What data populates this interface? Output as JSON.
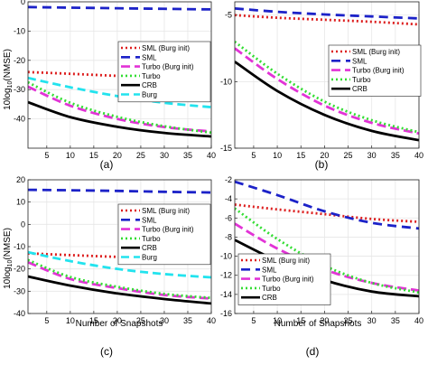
{
  "figure": {
    "ylabel": "10log10(NMSE)",
    "xlabel": "Number of Snapshots",
    "series_styles": {
      "SML (Burg init)": {
        "color": "#dd1f1f",
        "dash": "2,3"
      },
      "SML": {
        "color": "#1c22c8",
        "dash": "10,6"
      },
      "Turbo (Burg init)": {
        "color": "#e233d6",
        "dash": "10,5"
      },
      "Turbo": {
        "color": "#33dd33",
        "dash": "2,3"
      },
      "CRB": {
        "color": "#000000",
        "dash": ""
      },
      "Burg": {
        "color": "#22e3ee",
        "dash": "9,5"
      }
    }
  },
  "chart_data": [
    {
      "type": "line",
      "panel_label": "(a)",
      "x": [
        1,
        40
      ],
      "xticks": [
        5,
        10,
        15,
        20,
        25,
        30,
        35,
        40
      ],
      "yticks": [
        -40,
        -30,
        -20,
        -10,
        0
      ],
      "ylim": [
        -50,
        0
      ],
      "grid": true,
      "legend_position": "top-right",
      "series": [
        {
          "name": "SML (Burg init)",
          "values": [
            [
              1,
              -24
            ],
            [
              10,
              -24.6
            ],
            [
              20,
              -25.3
            ],
            [
              30,
              -25.9
            ],
            [
              40,
              -26.4
            ]
          ]
        },
        {
          "name": "SML",
          "values": [
            [
              1,
              -1.8
            ],
            [
              10,
              -2
            ],
            [
              20,
              -2.2
            ],
            [
              30,
              -2.4
            ],
            [
              40,
              -2.6
            ]
          ]
        },
        {
          "name": "Turbo (Burg init)",
          "values": [
            [
              1,
              -29
            ],
            [
              10,
              -35.5
            ],
            [
              20,
              -40
            ],
            [
              30,
              -42.8
            ],
            [
              40,
              -44.3
            ]
          ]
        },
        {
          "name": "Turbo",
          "values": [
            [
              1,
              -27.5
            ],
            [
              10,
              -34.5
            ],
            [
              20,
              -39.3
            ],
            [
              30,
              -42.5
            ],
            [
              40,
              -44.7
            ]
          ]
        },
        {
          "name": "CRB",
          "values": [
            [
              1,
              -34.3
            ],
            [
              10,
              -39.4
            ],
            [
              20,
              -42.7
            ],
            [
              30,
              -44.8
            ],
            [
              40,
              -46
            ]
          ]
        },
        {
          "name": "Burg",
          "values": [
            [
              1,
              -26
            ],
            [
              10,
              -29.2
            ],
            [
              20,
              -32.2
            ],
            [
              30,
              -34.5
            ],
            [
              40,
              -36
            ]
          ]
        }
      ]
    },
    {
      "type": "line",
      "panel_label": "(b)",
      "x": [
        1,
        40
      ],
      "xticks": [
        5,
        10,
        15,
        20,
        25,
        30,
        35,
        40
      ],
      "yticks": [
        -15,
        -10,
        -5
      ],
      "ylim": [
        -15,
        -4
      ],
      "grid": true,
      "legend_position": "top-right",
      "series": [
        {
          "name": "SML (Burg init)",
          "values": [
            [
              1,
              -5
            ],
            [
              10,
              -5.2
            ],
            [
              20,
              -5.35
            ],
            [
              30,
              -5.5
            ],
            [
              40,
              -5.7
            ]
          ]
        },
        {
          "name": "SML",
          "values": [
            [
              1,
              -4.5
            ],
            [
              10,
              -4.75
            ],
            [
              20,
              -4.95
            ],
            [
              30,
              -5.1
            ],
            [
              40,
              -5.25
            ]
          ]
        },
        {
          "name": "Turbo (Burg init)",
          "values": [
            [
              1,
              -7.5
            ],
            [
              10,
              -9.8
            ],
            [
              20,
              -11.8
            ],
            [
              30,
              -13.1
            ],
            [
              40,
              -13.9
            ]
          ]
        },
        {
          "name": "Turbo",
          "values": [
            [
              1,
              -7
            ],
            [
              10,
              -9.4
            ],
            [
              20,
              -11.5
            ],
            [
              30,
              -12.9
            ],
            [
              40,
              -13.8
            ]
          ]
        },
        {
          "name": "CRB",
          "values": [
            [
              1,
              -8.5
            ],
            [
              10,
              -10.7
            ],
            [
              20,
              -12.5
            ],
            [
              30,
              -13.7
            ],
            [
              40,
              -14.4
            ]
          ]
        }
      ]
    },
    {
      "type": "line",
      "panel_label": "(c)",
      "x": [
        1,
        40
      ],
      "xticks": [
        5,
        10,
        15,
        20,
        25,
        30,
        35,
        40
      ],
      "yticks": [
        -40,
        -30,
        -20,
        -10,
        0,
        10,
        20
      ],
      "ylim": [
        -40,
        20
      ],
      "grid": true,
      "legend_position": "top-right",
      "series": [
        {
          "name": "SML (Burg init)",
          "values": [
            [
              1,
              -13
            ],
            [
              10,
              -13.8
            ],
            [
              20,
              -14.6
            ],
            [
              30,
              -15.3
            ],
            [
              40,
              -15.7
            ]
          ]
        },
        {
          "name": "SML",
          "values": [
            [
              1,
              15.5
            ],
            [
              10,
              15.3
            ],
            [
              20,
              15
            ],
            [
              30,
              14.6
            ],
            [
              40,
              14.3
            ]
          ]
        },
        {
          "name": "Turbo (Burg init)",
          "values": [
            [
              1,
              -17
            ],
            [
              10,
              -24.5
            ],
            [
              20,
              -28.6
            ],
            [
              30,
              -31.7
            ],
            [
              40,
              -33.3
            ]
          ]
        },
        {
          "name": "Turbo",
          "values": [
            [
              1,
              -16
            ],
            [
              10,
              -23.6
            ],
            [
              20,
              -28
            ],
            [
              30,
              -31.2
            ],
            [
              40,
              -33
            ]
          ]
        },
        {
          "name": "CRB",
          "values": [
            [
              1,
              -23.4
            ],
            [
              10,
              -27.5
            ],
            [
              20,
              -31
            ],
            [
              30,
              -33.5
            ],
            [
              40,
              -35.5
            ]
          ]
        },
        {
          "name": "Burg",
          "values": [
            [
              1,
              -12.5
            ],
            [
              10,
              -16.5
            ],
            [
              20,
              -20
            ],
            [
              30,
              -22.3
            ],
            [
              40,
              -23.8
            ]
          ]
        }
      ]
    },
    {
      "type": "line",
      "panel_label": "(d)",
      "x": [
        1,
        40
      ],
      "xticks": [
        5,
        10,
        15,
        20,
        25,
        30,
        35,
        40
      ],
      "yticks": [
        -16,
        -14,
        -12,
        -10,
        -8,
        -6,
        -4,
        -2
      ],
      "ylim": [
        -16,
        -2
      ],
      "grid": true,
      "legend_position": "bottom-left",
      "series": [
        {
          "name": "SML (Burg init)",
          "values": [
            [
              1,
              -4.6
            ],
            [
              10,
              -5.1
            ],
            [
              20,
              -5.6
            ],
            [
              30,
              -6.1
            ],
            [
              40,
              -6.4
            ]
          ]
        },
        {
          "name": "SML",
          "values": [
            [
              1,
              -2.2
            ],
            [
              10,
              -3.6
            ],
            [
              20,
              -5.3
            ],
            [
              30,
              -6.5
            ],
            [
              40,
              -7.1
            ]
          ]
        },
        {
          "name": "Turbo (Burg init)",
          "values": [
            [
              1,
              -6.6
            ],
            [
              10,
              -9.2
            ],
            [
              20,
              -11.4
            ],
            [
              30,
              -12.8
            ],
            [
              40,
              -13.6
            ]
          ]
        },
        {
          "name": "Turbo",
          "values": [
            [
              1,
              -5
            ],
            [
              10,
              -8.2
            ],
            [
              20,
              -11
            ],
            [
              30,
              -12.8
            ],
            [
              40,
              -13.8
            ]
          ]
        },
        {
          "name": "CRB",
          "values": [
            [
              1,
              -8.3
            ],
            [
              10,
              -10.5
            ],
            [
              20,
              -12.5
            ],
            [
              30,
              -13.7
            ],
            [
              40,
              -14.2
            ]
          ]
        }
      ]
    }
  ]
}
